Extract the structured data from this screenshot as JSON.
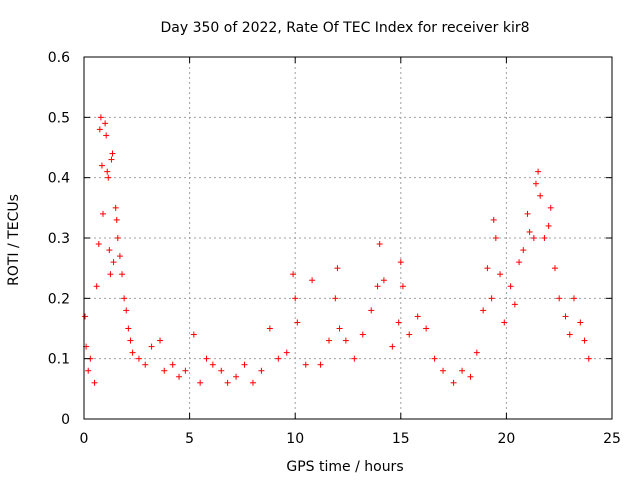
{
  "chart_data": {
    "type": "scatter",
    "title": "Day 350 of 2022, Rate Of TEC Index for receiver kir8",
    "xlabel": "GPS time / hours",
    "ylabel": "ROTI / TECUs",
    "xlim": [
      0,
      25
    ],
    "ylim": [
      0,
      0.6
    ],
    "xticks": [
      "0",
      "5",
      "10",
      "15",
      "20",
      "25"
    ],
    "yticks": [
      "0",
      "0.1",
      "0.2",
      "0.3",
      "0.4",
      "0.5",
      "0.6"
    ],
    "grid": true,
    "marker": "+",
    "color": "#ff0000",
    "series": [
      {
        "points": [
          [
            0.05,
            0.17
          ],
          [
            0.1,
            0.12
          ],
          [
            0.2,
            0.08
          ],
          [
            0.3,
            0.1
          ],
          [
            0.5,
            0.06
          ],
          [
            0.6,
            0.22
          ],
          [
            0.7,
            0.29
          ],
          [
            0.75,
            0.48
          ],
          [
            0.8,
            0.5
          ],
          [
            0.85,
            0.42
          ],
          [
            0.9,
            0.34
          ],
          [
            1.0,
            0.49
          ],
          [
            1.05,
            0.47
          ],
          [
            1.1,
            0.41
          ],
          [
            1.15,
            0.4
          ],
          [
            1.2,
            0.28
          ],
          [
            1.25,
            0.24
          ],
          [
            1.3,
            0.43
          ],
          [
            1.35,
            0.44
          ],
          [
            1.4,
            0.26
          ],
          [
            1.5,
            0.35
          ],
          [
            1.55,
            0.33
          ],
          [
            1.6,
            0.3
          ],
          [
            1.7,
            0.27
          ],
          [
            1.8,
            0.24
          ],
          [
            1.9,
            0.2
          ],
          [
            2.0,
            0.18
          ],
          [
            2.1,
            0.15
          ],
          [
            2.2,
            0.13
          ],
          [
            2.3,
            0.11
          ],
          [
            2.6,
            0.1
          ],
          [
            2.9,
            0.09
          ],
          [
            3.2,
            0.12
          ],
          [
            3.6,
            0.13
          ],
          [
            3.8,
            0.08
          ],
          [
            4.2,
            0.09
          ],
          [
            4.5,
            0.07
          ],
          [
            4.8,
            0.08
          ],
          [
            5.2,
            0.14
          ],
          [
            5.5,
            0.06
          ],
          [
            5.8,
            0.1
          ],
          [
            6.1,
            0.09
          ],
          [
            6.5,
            0.08
          ],
          [
            6.8,
            0.06
          ],
          [
            7.2,
            0.07
          ],
          [
            7.6,
            0.09
          ],
          [
            8.0,
            0.06
          ],
          [
            8.4,
            0.08
          ],
          [
            8.8,
            0.15
          ],
          [
            9.2,
            0.1
          ],
          [
            9.6,
            0.11
          ],
          [
            9.9,
            0.24
          ],
          [
            10.0,
            0.2
          ],
          [
            10.1,
            0.16
          ],
          [
            10.5,
            0.09
          ],
          [
            10.8,
            0.23
          ],
          [
            11.2,
            0.09
          ],
          [
            11.6,
            0.13
          ],
          [
            11.9,
            0.2
          ],
          [
            12.0,
            0.25
          ],
          [
            12.1,
            0.15
          ],
          [
            12.4,
            0.13
          ],
          [
            12.8,
            0.1
          ],
          [
            13.2,
            0.14
          ],
          [
            13.6,
            0.18
          ],
          [
            13.9,
            0.22
          ],
          [
            14.0,
            0.29
          ],
          [
            14.2,
            0.23
          ],
          [
            14.6,
            0.12
          ],
          [
            14.9,
            0.16
          ],
          [
            15.0,
            0.26
          ],
          [
            15.1,
            0.22
          ],
          [
            15.4,
            0.14
          ],
          [
            15.8,
            0.17
          ],
          [
            16.2,
            0.15
          ],
          [
            16.6,
            0.1
          ],
          [
            17.0,
            0.08
          ],
          [
            17.5,
            0.06
          ],
          [
            17.9,
            0.08
          ],
          [
            18.3,
            0.07
          ],
          [
            18.6,
            0.11
          ],
          [
            18.9,
            0.18
          ],
          [
            19.1,
            0.25
          ],
          [
            19.3,
            0.2
          ],
          [
            19.4,
            0.33
          ],
          [
            19.5,
            0.3
          ],
          [
            19.7,
            0.24
          ],
          [
            19.9,
            0.16
          ],
          [
            20.2,
            0.22
          ],
          [
            20.4,
            0.19
          ],
          [
            20.6,
            0.26
          ],
          [
            20.8,
            0.28
          ],
          [
            21.0,
            0.34
          ],
          [
            21.1,
            0.31
          ],
          [
            21.3,
            0.3
          ],
          [
            21.4,
            0.39
          ],
          [
            21.5,
            0.41
          ],
          [
            21.6,
            0.37
          ],
          [
            21.8,
            0.3
          ],
          [
            22.0,
            0.32
          ],
          [
            22.1,
            0.35
          ],
          [
            22.3,
            0.25
          ],
          [
            22.5,
            0.2
          ],
          [
            22.8,
            0.17
          ],
          [
            23.0,
            0.14
          ],
          [
            23.2,
            0.2
          ],
          [
            23.5,
            0.16
          ],
          [
            23.7,
            0.13
          ],
          [
            23.9,
            0.1
          ]
        ]
      }
    ]
  }
}
